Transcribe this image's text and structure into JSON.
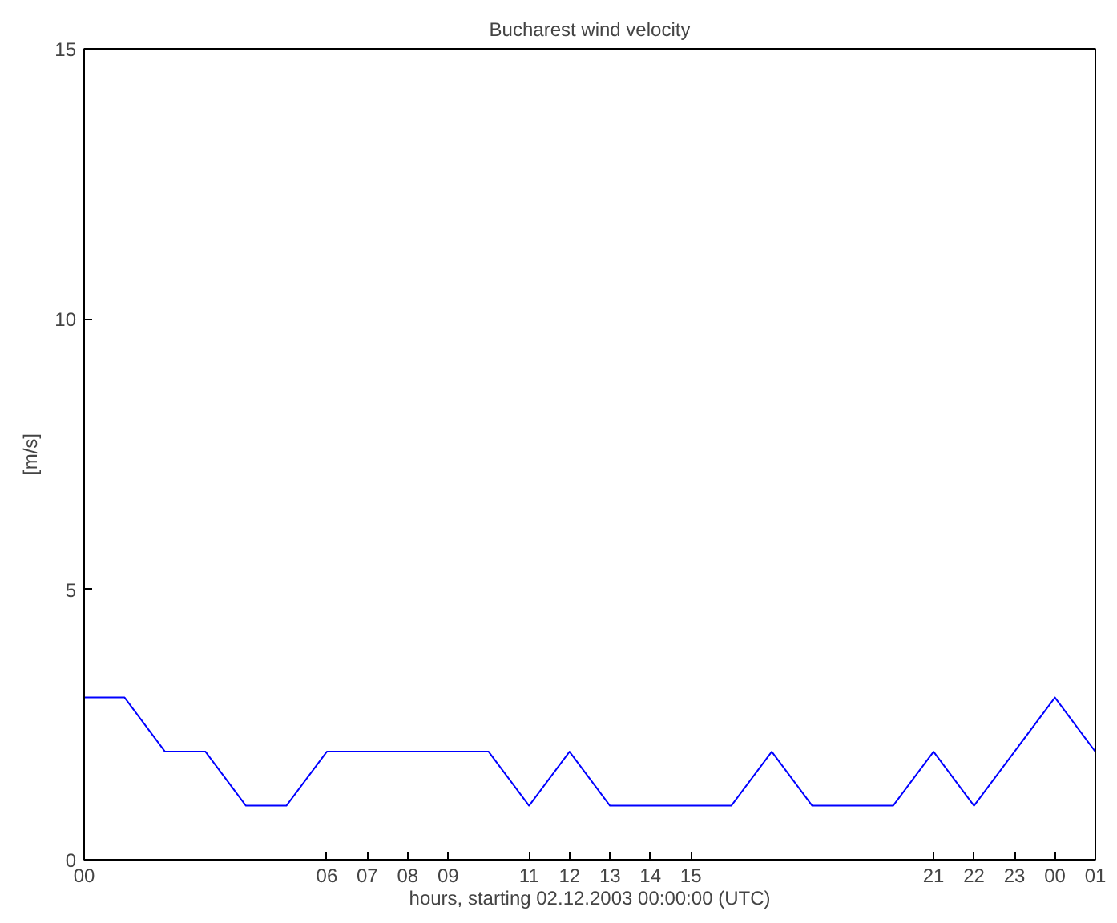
{
  "chart_data": {
    "type": "line",
    "title": "Bucharest wind velocity",
    "xlabel": "hours, starting 02.12.2003 00:00:00 (UTC)",
    "ylabel": "[m/s]",
    "x": [
      0,
      1,
      2,
      3,
      4,
      5,
      6,
      7,
      8,
      9,
      10,
      11,
      12,
      13,
      14,
      15,
      16,
      17,
      18,
      19,
      20,
      21,
      22,
      23,
      24,
      25
    ],
    "series": [
      {
        "color": "#0000ff",
        "values": [
          3,
          3,
          2,
          2,
          1,
          1,
          2,
          2,
          2,
          2,
          2,
          1,
          2,
          1,
          1,
          1,
          1,
          2,
          1,
          1,
          1,
          2,
          1,
          2,
          3,
          2
        ]
      }
    ],
    "xlim": [
      0,
      25
    ],
    "ylim": [
      0,
      15
    ],
    "xticks": [
      {
        "value": 0,
        "label": "00"
      },
      {
        "value": 6,
        "label": "06"
      },
      {
        "value": 7,
        "label": "07"
      },
      {
        "value": 8,
        "label": "08"
      },
      {
        "value": 9,
        "label": "09"
      },
      {
        "value": 11,
        "label": "11"
      },
      {
        "value": 12,
        "label": "12"
      },
      {
        "value": 13,
        "label": "13"
      },
      {
        "value": 14,
        "label": "14"
      },
      {
        "value": 15,
        "label": "15"
      },
      {
        "value": 21,
        "label": "21"
      },
      {
        "value": 22,
        "label": "22"
      },
      {
        "value": 23,
        "label": "23"
      },
      {
        "value": 24,
        "label": "00"
      },
      {
        "value": 25,
        "label": "01"
      }
    ],
    "yticks": [
      0,
      5,
      10,
      15
    ],
    "grid": false,
    "marker": "none",
    "line_style": "solid"
  }
}
